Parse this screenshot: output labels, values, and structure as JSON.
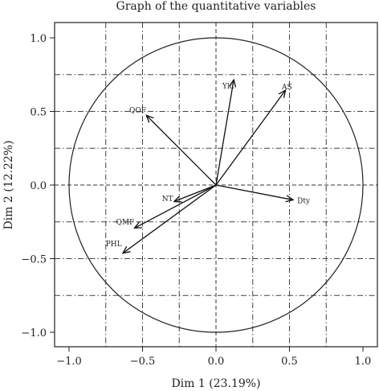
{
  "chart_data": {
    "type": "scatter",
    "subtype": "pca-correlation-circle",
    "title": "Graph of the quantitative variables",
    "xlabel": "Dim 1 (23.19%)",
    "ylabel": "Dim 2 (12.22%)",
    "xlim": [
      -1.1,
      1.1
    ],
    "ylim": [
      -1.1,
      1.1
    ],
    "xticks": [
      -1.0,
      -0.5,
      0.0,
      0.5,
      1.0
    ],
    "yticks": [
      -1.0,
      -0.5,
      0.0,
      0.5,
      1.0
    ],
    "xtick_labels": [
      "−1.0",
      "−0.5",
      "0.0",
      "0.5",
      "1.0"
    ],
    "ytick_labels": [
      "−1.0",
      "−0.5",
      "0.0",
      "0.5",
      "1.0"
    ],
    "grid_values": [
      -0.75,
      -0.5,
      -0.25,
      0.25,
      0.5,
      0.75
    ],
    "grid": true,
    "unit_circle": true,
    "variables": [
      {
        "name": "Yld",
        "x": 0.12,
        "y": 0.71
      },
      {
        "name": "AS",
        "x": 0.47,
        "y": 0.64
      },
      {
        "name": "QOF",
        "x": -0.47,
        "y": 0.47
      },
      {
        "name": "NT",
        "x": -0.28,
        "y": -0.11
      },
      {
        "name": "QMF",
        "x": -0.55,
        "y": -0.29
      },
      {
        "name": "PHL",
        "x": -0.63,
        "y": -0.46
      },
      {
        "name": "Dty",
        "x": 0.52,
        "y": -0.1
      }
    ]
  }
}
